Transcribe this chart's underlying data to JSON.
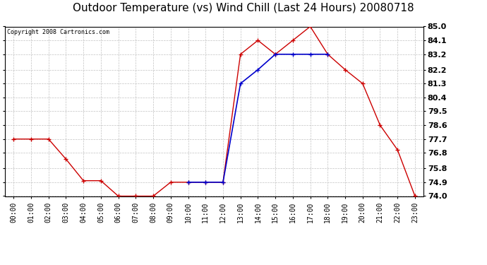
{
  "title": "Outdoor Temperature (vs) Wind Chill (Last 24 Hours) 20080718",
  "copyright_text": "Copyright 2008 Cartronics.com",
  "hours": [
    0,
    1,
    2,
    3,
    4,
    5,
    6,
    7,
    8,
    9,
    10,
    11,
    12,
    13,
    14,
    15,
    16,
    17,
    18,
    19,
    20,
    21,
    22,
    23
  ],
  "hour_labels": [
    "00:00",
    "01:00",
    "02:00",
    "03:00",
    "04:00",
    "05:00",
    "06:00",
    "07:00",
    "08:00",
    "09:00",
    "10:00",
    "11:00",
    "12:00",
    "13:00",
    "14:00",
    "15:00",
    "16:00",
    "17:00",
    "18:00",
    "19:00",
    "20:00",
    "21:00",
    "22:00",
    "23:00"
  ],
  "temp_red": [
    77.7,
    77.7,
    77.7,
    76.4,
    75.0,
    75.0,
    74.0,
    74.0,
    74.0,
    74.9,
    74.9,
    74.9,
    74.9,
    83.2,
    84.1,
    83.2,
    84.1,
    85.0,
    83.2,
    82.2,
    81.3,
    78.6,
    77.0,
    74.0
  ],
  "wind_chill_blue_x": [
    10,
    11,
    12,
    13,
    14,
    15,
    16,
    17,
    18
  ],
  "wind_chill_blue_y": [
    74.9,
    74.9,
    74.9,
    81.3,
    82.2,
    83.2,
    83.2,
    83.2,
    83.2
  ],
  "ylim": [
    74.0,
    85.0
  ],
  "yticks": [
    74.0,
    74.9,
    75.8,
    76.8,
    77.7,
    78.6,
    79.5,
    80.4,
    81.3,
    82.2,
    83.2,
    84.1,
    85.0
  ],
  "ytick_labels": [
    "74.0",
    "74.9",
    "75.8",
    "76.8",
    "77.7",
    "78.6",
    "79.5",
    "80.4",
    "81.3",
    "82.2",
    "83.2",
    "84.1",
    "85.0"
  ],
  "red_color": "#cc0000",
  "blue_color": "#0000cc",
  "bg_color": "#ffffff",
  "plot_bg_color": "#ffffff",
  "grid_color": "#bbbbbb",
  "title_fontsize": 11,
  "marker": "+"
}
